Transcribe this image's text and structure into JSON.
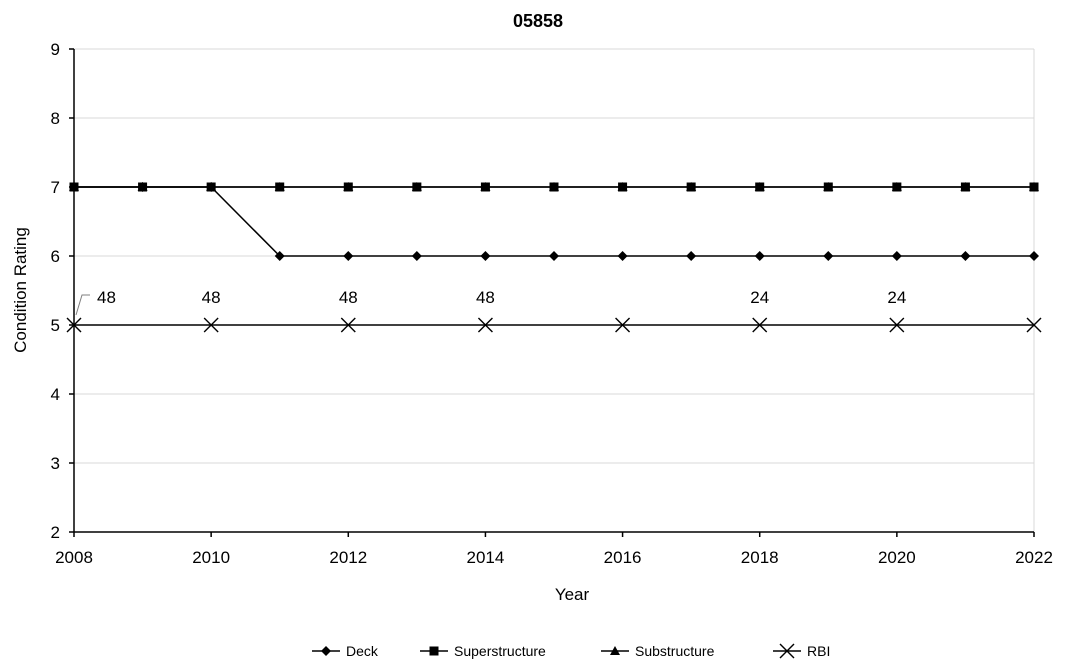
{
  "chart_data": {
    "type": "line",
    "title": "05858",
    "xlabel": "Year",
    "ylabel": "Condition Rating",
    "xlim": [
      2008,
      2022
    ],
    "ylim": [
      2,
      9
    ],
    "x_ticks": [
      "2008",
      "2010",
      "2012",
      "2014",
      "2016",
      "2018",
      "2020",
      "2022"
    ],
    "y_ticks": [
      "2",
      "3",
      "4",
      "5",
      "6",
      "7",
      "8",
      "9"
    ],
    "grid": "horizontal",
    "legend_position": "bottom",
    "series": [
      {
        "name": "Deck",
        "marker": "diamond",
        "x": [
          2008,
          2009,
          2010,
          2011,
          2012,
          2013,
          2014,
          2015,
          2016,
          2017,
          2018,
          2019,
          2020,
          2021,
          2022
        ],
        "values": [
          7,
          7,
          7,
          6,
          6,
          6,
          6,
          6,
          6,
          6,
          6,
          6,
          6,
          6,
          6
        ]
      },
      {
        "name": "Superstructure",
        "marker": "square",
        "x": [
          2008,
          2009,
          2010,
          2011,
          2012,
          2013,
          2014,
          2015,
          2016,
          2017,
          2018,
          2019,
          2020,
          2021,
          2022
        ],
        "values": [
          7,
          7,
          7,
          7,
          7,
          7,
          7,
          7,
          7,
          7,
          7,
          7,
          7,
          7,
          7
        ]
      },
      {
        "name": "Substructure",
        "marker": "triangle",
        "x": [
          2008,
          2009,
          2010,
          2011,
          2012,
          2013,
          2014,
          2015,
          2016,
          2017,
          2018,
          2019,
          2020,
          2021,
          2022
        ],
        "values": [
          7,
          7,
          7,
          7,
          7,
          7,
          7,
          7,
          7,
          7,
          7,
          7,
          7,
          7,
          7
        ]
      },
      {
        "name": "RBI",
        "marker": "x",
        "x": [
          2008,
          2010,
          2012,
          2014,
          2016,
          2018,
          2020,
          2022
        ],
        "values": [
          5,
          5,
          5,
          5,
          5,
          5,
          5,
          5
        ],
        "labels": [
          "48",
          "48",
          "48",
          "48",
          "",
          "24",
          "24",
          ""
        ]
      }
    ],
    "colors": {
      "line": "#000000",
      "grid": "#d9d9d9",
      "axis": "#000000"
    }
  }
}
